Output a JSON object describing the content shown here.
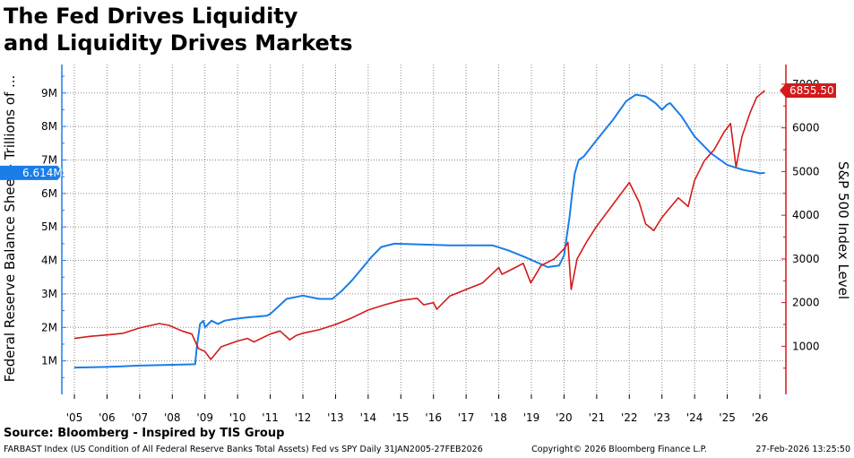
{
  "title_line1": "The Fed Drives Liquidity",
  "title_line2": "and Liquidity Drives Markets",
  "source": "Source: Bloomberg - Inspired by TIS Group",
  "footer": {
    "index_info": "FARBAST Index (US Condition of All Federal Reserve Banks Total Assets) Fed vs SPY Daily 31JAN2005-27FEB2026",
    "copyright": "Copyright© 2026 Bloomberg Finance L.P.",
    "timestamp": "27-Feb-2026 13:25:50"
  },
  "colors": {
    "fed": "#1a7de8",
    "spx": "#d41a1a",
    "grid": "#888888"
  },
  "chart_data": {
    "type": "line",
    "x_tick_labels": [
      "'05",
      "'06",
      "'07",
      "'08",
      "'09",
      "'10",
      "'11",
      "'12",
      "'13",
      "'14",
      "'15",
      "'16",
      "'17",
      "'18",
      "'19",
      "'20",
      "'21",
      "'22",
      "'23",
      "'24",
      "'25",
      "'26"
    ],
    "x_range": [
      2005.0,
      2026.2
    ],
    "y_left": {
      "label": "Federal Reserve Balance Sheet - Trillions of ...",
      "ticks": [
        "1M",
        "2M",
        "3M",
        "4M",
        "5M",
        "6M",
        "7M",
        "8M",
        "9M"
      ],
      "range": [
        0,
        9.85
      ],
      "last_value_label": "6.614M"
    },
    "y_right": {
      "label": "S&P 500 Index Level",
      "ticks": [
        "1000",
        "2000",
        "3000",
        "4000",
        "5000",
        "6000",
        "7000"
      ],
      "range": [
        -100,
        7450
      ],
      "last_value_label": "6855.50"
    },
    "grid": true,
    "series": [
      {
        "axis": "left",
        "x": [
          2005.0,
          2006.0,
          2007.0,
          2007.9,
          2008.7,
          2008.75,
          2008.85,
          2008.95,
          2009.0,
          2009.2,
          2009.4,
          2009.6,
          2009.9,
          2010.3,
          2010.9,
          2011.0,
          2011.5,
          2012.0,
          2012.5,
          2012.9,
          2013.2,
          2013.5,
          2013.8,
          2014.1,
          2014.4,
          2014.8,
          2015.5,
          2016.5,
          2017.5,
          2017.8,
          2018.3,
          2018.8,
          2019.5,
          2019.85,
          2020.0,
          2020.17,
          2020.25,
          2020.33,
          2020.45,
          2020.6,
          2021.0,
          2021.5,
          2021.9,
          2022.2,
          2022.5,
          2022.8,
          2023.0,
          2023.15,
          2023.25,
          2023.6,
          2024.0,
          2024.5,
          2025.0,
          2025.5,
          2025.8,
          2026.0,
          2026.15
        ],
        "values": [
          0.8,
          0.82,
          0.86,
          0.88,
          0.9,
          1.4,
          2.1,
          2.2,
          2.0,
          2.2,
          2.1,
          2.2,
          2.25,
          2.3,
          2.35,
          2.4,
          2.85,
          2.95,
          2.85,
          2.85,
          3.1,
          3.4,
          3.75,
          4.1,
          4.4,
          4.5,
          4.48,
          4.45,
          4.45,
          4.45,
          4.3,
          4.1,
          3.8,
          3.85,
          4.15,
          5.3,
          6.0,
          6.6,
          7.0,
          7.1,
          7.6,
          8.2,
          8.75,
          8.95,
          8.9,
          8.7,
          8.5,
          8.65,
          8.7,
          8.3,
          7.7,
          7.2,
          6.85,
          6.7,
          6.65,
          6.6,
          6.614
        ]
      },
      {
        "axis": "right",
        "x": [
          2005.0,
          2005.5,
          2006.0,
          2006.5,
          2007.0,
          2007.6,
          2007.9,
          2008.3,
          2008.6,
          2008.8,
          2009.0,
          2009.18,
          2009.5,
          2010.0,
          2010.3,
          2010.5,
          2011.0,
          2011.3,
          2011.6,
          2011.8,
          2012.0,
          2012.5,
          2013.0,
          2013.5,
          2014.0,
          2014.5,
          2015.0,
          2015.5,
          2015.7,
          2016.0,
          2016.1,
          2016.5,
          2017.0,
          2017.5,
          2018.0,
          2018.1,
          2018.5,
          2018.75,
          2018.98,
          2019.3,
          2019.7,
          2020.0,
          2020.12,
          2020.22,
          2020.4,
          2020.7,
          2021.0,
          2021.5,
          2022.0,
          2022.3,
          2022.5,
          2022.75,
          2023.0,
          2023.5,
          2023.8,
          2024.0,
          2024.3,
          2024.6,
          2024.9,
          2025.1,
          2025.27,
          2025.45,
          2025.7,
          2025.9,
          2026.15
        ],
        "values": [
          1180,
          1230,
          1260,
          1300,
          1420,
          1520,
          1480,
          1350,
          1280,
          950,
          880,
          700,
          990,
          1120,
          1180,
          1100,
          1280,
          1350,
          1150,
          1250,
          1300,
          1380,
          1500,
          1650,
          1830,
          1950,
          2050,
          2100,
          1950,
          2000,
          1850,
          2150,
          2300,
          2450,
          2800,
          2650,
          2800,
          2900,
          2450,
          2850,
          3000,
          3230,
          3380,
          2300,
          3000,
          3400,
          3750,
          4250,
          4750,
          4300,
          3800,
          3650,
          3950,
          4400,
          4200,
          4800,
          5250,
          5500,
          5900,
          6100,
          5100,
          5800,
          6350,
          6700,
          6855
        ]
      }
    ]
  }
}
